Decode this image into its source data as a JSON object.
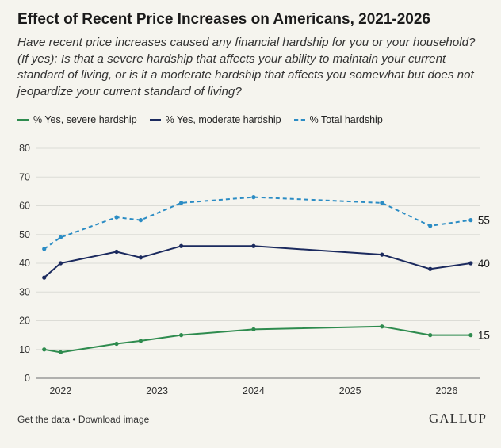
{
  "title": "Effect of Recent Price Increases on Americans, 2021-2026",
  "subtitle": "Have recent price increases caused any financial hardship for you or your household? (If yes): Is that a severe hardship that affects your ability to maintain your current standard of living, or is it a moderate hardship that affects you somewhat but does not jeopardize your current standard of living?",
  "footer": {
    "get_data": "Get the data",
    "separator": " • ",
    "download": "Download image",
    "brand": "GALLUP"
  },
  "chart_data": {
    "type": "line",
    "ylim": [
      0,
      80
    ],
    "yticks": [
      0,
      10,
      20,
      30,
      40,
      50,
      60,
      70,
      80
    ],
    "xlim": [
      2021.75,
      2026.35
    ],
    "xticks": [
      2022,
      2023,
      2024,
      2025,
      2026
    ],
    "grid": true,
    "legend_placement": "top-left",
    "series": [
      {
        "name": "% Yes, severe hardship",
        "color": "#2e8b4e",
        "style": "solid",
        "x": [
          2021.83,
          2022.0,
          2022.58,
          2022.83,
          2023.25,
          2024.0,
          2025.33,
          2025.83,
          2026.25
        ],
        "values": [
          10,
          9,
          12,
          13,
          15,
          17,
          18,
          15,
          15
        ],
        "end_label": "15"
      },
      {
        "name": "% Yes, moderate hardship",
        "color": "#1b2a5e",
        "style": "solid",
        "x": [
          2021.83,
          2022.0,
          2022.58,
          2022.83,
          2023.25,
          2024.0,
          2025.33,
          2025.83,
          2026.25
        ],
        "values": [
          35,
          40,
          44,
          42,
          46,
          46,
          43,
          38,
          40
        ],
        "end_label": "40"
      },
      {
        "name": "% Total hardship",
        "color": "#2b8cc4",
        "style": "dashed",
        "x": [
          2021.83,
          2022.0,
          2022.58,
          2022.83,
          2023.25,
          2024.0,
          2025.33,
          2025.83,
          2026.25
        ],
        "values": [
          45,
          49,
          56,
          55,
          61,
          63,
          61,
          53,
          55
        ],
        "end_label": "55"
      }
    ]
  }
}
